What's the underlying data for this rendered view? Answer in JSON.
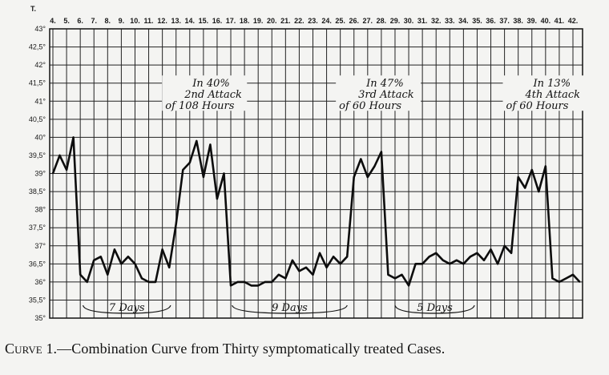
{
  "chart_data": {
    "type": "line",
    "ylabel": "T.",
    "ylim": [
      35,
      43
    ],
    "yticks": [
      "35°",
      "35,5°",
      "36°",
      "36,5°",
      "37°",
      "37,5°",
      "38°",
      "38,5°",
      "39°",
      "39,5°",
      "40°",
      "40,5°",
      "41°",
      "41,5°",
      "42°",
      "42,5°",
      "43°"
    ],
    "xlim": [
      4,
      42
    ],
    "xticks": [
      "4.",
      "5.",
      "6.",
      "7.",
      "8.",
      "9.",
      "10.",
      "11.",
      "12.",
      "13.",
      "14.",
      "15.",
      "16.",
      "17.",
      "18.",
      "19.",
      "20.",
      "21.",
      "22.",
      "23.",
      "24.",
      "25.",
      "26.",
      "27.",
      "28.",
      "29.",
      "30.",
      "31.",
      "32.",
      "33.",
      "34.",
      "35.",
      "36.",
      "37.",
      "38.",
      "39.",
      "40.",
      "41.",
      "42."
    ],
    "grid": true,
    "series": [
      {
        "points": [
          [
            4,
            39.0
          ],
          [
            4.5,
            39.5
          ],
          [
            5,
            39.1
          ],
          [
            5.5,
            40.0
          ],
          [
            6,
            36.2
          ],
          [
            6.5,
            36.0
          ],
          [
            7,
            36.6
          ],
          [
            7.5,
            36.7
          ],
          [
            8,
            36.2
          ],
          [
            8.5,
            36.9
          ],
          [
            9,
            36.5
          ],
          [
            9.5,
            36.7
          ],
          [
            10,
            36.5
          ],
          [
            10.5,
            36.1
          ],
          [
            11,
            36.0
          ],
          [
            11.5,
            36.0
          ],
          [
            12,
            36.9
          ],
          [
            12.5,
            36.4
          ],
          [
            13,
            37.6
          ],
          [
            13.5,
            39.1
          ],
          [
            14,
            39.3
          ],
          [
            14.5,
            39.9
          ],
          [
            15,
            38.9
          ],
          [
            15.5,
            39.8
          ],
          [
            16,
            38.3
          ],
          [
            16.5,
            39.0
          ],
          [
            17,
            35.9
          ],
          [
            17.5,
            36.0
          ],
          [
            18,
            36.0
          ],
          [
            18.5,
            35.9
          ],
          [
            19,
            35.9
          ],
          [
            19.5,
            36.0
          ],
          [
            20,
            36.0
          ],
          [
            20.5,
            36.2
          ],
          [
            21,
            36.1
          ],
          [
            21.5,
            36.6
          ],
          [
            22,
            36.3
          ],
          [
            22.5,
            36.4
          ],
          [
            23,
            36.2
          ],
          [
            23.5,
            36.8
          ],
          [
            24,
            36.4
          ],
          [
            24.5,
            36.7
          ],
          [
            25,
            36.5
          ],
          [
            25.5,
            36.7
          ],
          [
            26,
            38.9
          ],
          [
            26.5,
            39.4
          ],
          [
            27,
            38.9
          ],
          [
            27.5,
            39.2
          ],
          [
            28,
            39.6
          ],
          [
            28.5,
            36.2
          ],
          [
            29,
            36.1
          ],
          [
            29.5,
            36.2
          ],
          [
            30,
            35.9
          ],
          [
            30.5,
            36.5
          ],
          [
            31,
            36.5
          ],
          [
            31.5,
            36.7
          ],
          [
            32,
            36.8
          ],
          [
            32.5,
            36.6
          ],
          [
            33,
            36.5
          ],
          [
            33.5,
            36.6
          ],
          [
            34,
            36.5
          ],
          [
            34.5,
            36.7
          ],
          [
            35,
            36.8
          ],
          [
            35.5,
            36.6
          ],
          [
            36,
            36.9
          ],
          [
            36.5,
            36.5
          ],
          [
            37,
            37.0
          ],
          [
            37.5,
            36.8
          ],
          [
            38,
            38.9
          ],
          [
            38.5,
            38.6
          ],
          [
            39,
            39.1
          ],
          [
            39.5,
            38.5
          ],
          [
            40,
            39.2
          ],
          [
            40.5,
            36.1
          ],
          [
            41,
            36.0
          ],
          [
            41.5,
            36.1
          ],
          [
            42,
            36.2
          ],
          [
            42.5,
            36.0
          ]
        ]
      }
    ],
    "annotations": [
      {
        "lines": [
          "In 40%",
          "2nd Attack",
          "of 108 Hours"
        ],
        "x": 13.5,
        "y": 41.4
      },
      {
        "lines": [
          "In 47%",
          "3rd Attack",
          "of 60 Hours"
        ],
        "x": 26.2,
        "y": 41.4
      },
      {
        "lines": [
          "In 13%",
          "4th Attack",
          "of 60 Hours"
        ],
        "x": 38.4,
        "y": 41.4
      }
    ],
    "duration_labels": [
      {
        "text": "7 Days",
        "x1": 6.2,
        "x2": 12.6
      },
      {
        "text": "9 Days",
        "x1": 17.1,
        "x2": 25.5
      },
      {
        "text": "5 Days",
        "x1": 29.0,
        "x2": 34.8
      }
    ]
  },
  "caption": {
    "label": "Curve 1.",
    "dash": "—",
    "text": "Combination Curve from Thirty symptomatically treated Cases."
  }
}
